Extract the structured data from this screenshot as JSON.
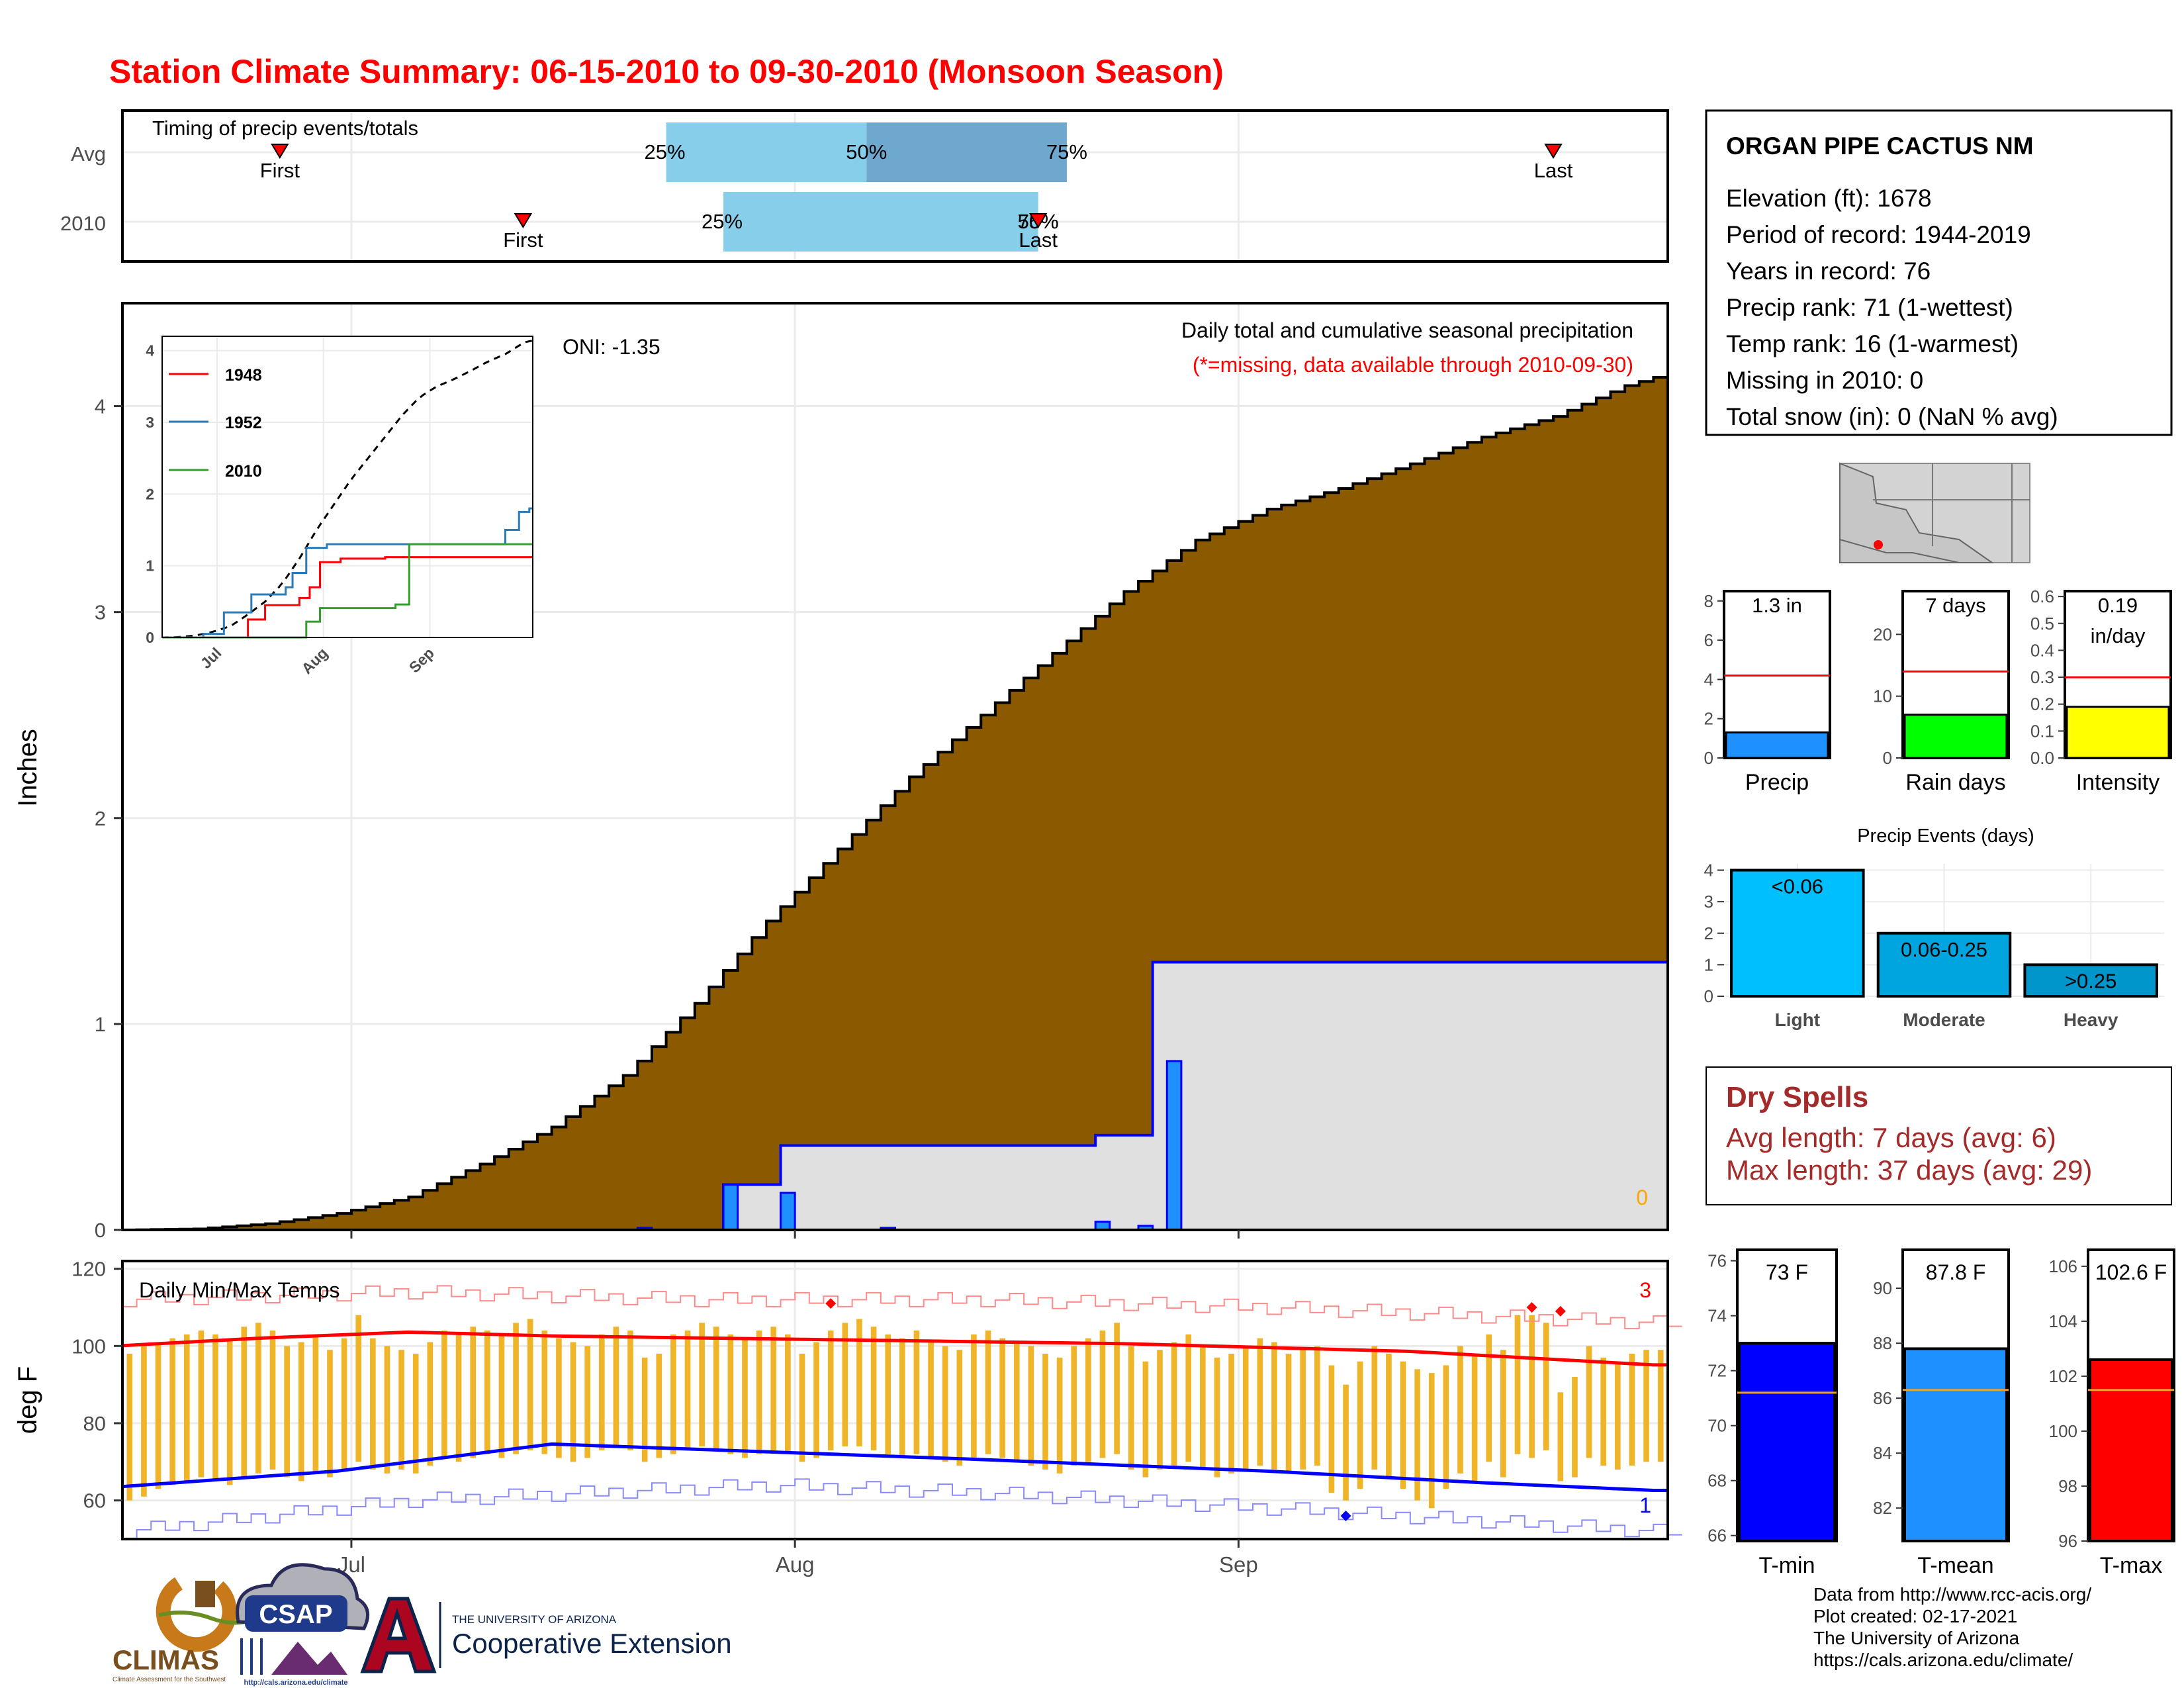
{
  "title": "Station Climate Summary: 06-15-2010 to 09-30-2010 (Monsoon Season)",
  "colors": {
    "title": "#ff0000",
    "accumulation_fill": "#8b5a00",
    "observed_fill": "#e0e0e0",
    "observed_line": "#0000ff",
    "daily_bar": "#1e90ff",
    "temp_bar": "#f0b429",
    "avg_max": "#ff0000",
    "avg_min": "#0000ff",
    "timing_light": "#87ceeb",
    "timing_dark": "#6fa8cf",
    "dry_spell": "#a52a2a"
  },
  "timing": {
    "label": "Timing of precip events/totals",
    "rows": [
      {
        "name": "Avg",
        "first_label": "First",
        "last_label": "Last",
        "p25_label": "25%",
        "p50_label": "50%",
        "p75_label": "75%",
        "first_day": 11,
        "last_day": 100,
        "p25_day": 38,
        "p50_day": 52,
        "p75_day": 66
      },
      {
        "name": "2010",
        "first_label": "First",
        "last_label": "Last",
        "p25_label": "25%",
        "p50_label": "50%",
        "p75_label": "75%",
        "first_day": 28,
        "last_day": 64,
        "p25_day": 42,
        "p50_day": 64,
        "p75_day": 64
      }
    ]
  },
  "station": {
    "name": "ORGAN PIPE CACTUS NM",
    "lines": [
      "Elevation (ft): 1678",
      "Period of record: 1944-2019",
      "Years in record: 76",
      "Precip rank: 71 (1-wettest)",
      "Temp rank: 16 (1-warmest)",
      "Missing in 2010: 0",
      "Total snow (in): 0 (NaN % avg)"
    ]
  },
  "precip_panel": {
    "title": "Daily total and cumulative seasonal precipitation",
    "note": "(*=missing, data available through 2010-09-30)",
    "oni": "ONI: -1.35",
    "missing_count": "0",
    "ylabel": "Inches"
  },
  "temp_panel": {
    "title": "Daily Min/Max Temps",
    "ylabel": "deg F",
    "record_high_count": "3",
    "record_low_count": "1"
  },
  "dry_spells": {
    "title": "Dry Spells",
    "avg_line": "Avg length: 7 days (avg: 6)",
    "max_line": "Max length: 37 days (avg: 29)"
  },
  "stat_bars": [
    {
      "name": "Precip",
      "value_text": "1.3 in",
      "value": 1.3,
      "avg": 4.2,
      "ymax": 8.5,
      "ticks": [
        0,
        2,
        4,
        6,
        8
      ],
      "color": "#1e90ff"
    },
    {
      "name": "Rain days",
      "value_text": "7 days",
      "value": 7,
      "avg": 14,
      "ymax": 27,
      "ticks": [
        0,
        10,
        20
      ],
      "color": "#00ff00"
    },
    {
      "name": "Intensity",
      "value_text": "0.19",
      "value_text2": "in/day",
      "value": 0.19,
      "avg": 0.3,
      "ymax": 0.62,
      "ticks": [
        0.0,
        0.1,
        0.2,
        0.3,
        0.4,
        0.5,
        0.6
      ],
      "color": "#ffff00"
    }
  ],
  "events": {
    "title": "Precip Events (days)",
    "categories": [
      "Light",
      "Moderate",
      "Heavy"
    ],
    "bar_labels": [
      "<0.06",
      "0.06-0.25",
      ">0.25"
    ],
    "values": [
      4,
      2,
      1
    ],
    "colors": [
      "#00bfff",
      "#00a5e0",
      "#0096cc"
    ],
    "ticks": [
      0,
      1,
      2,
      3,
      4
    ]
  },
  "temp_bars": [
    {
      "name": "T-min",
      "value_text": "73 F",
      "value": 73.0,
      "avg": 71.2,
      "ymin": 65.8,
      "ymax": 76.4,
      "ticks": [
        66,
        68,
        70,
        72,
        74,
        76
      ],
      "color": "#0000ff"
    },
    {
      "name": "T-mean",
      "value_text": "87.8 F",
      "value": 87.8,
      "avg": 86.3,
      "ymin": 80.8,
      "ymax": 91.4,
      "ticks": [
        82,
        84,
        86,
        88,
        90
      ],
      "color": "#1e90ff"
    },
    {
      "name": "T-max",
      "value_text": "102.6 F",
      "value": 102.6,
      "avg": 101.5,
      "ymin": 96.0,
      "ymax": 106.6,
      "ticks": [
        96,
        98,
        100,
        102,
        104,
        106
      ],
      "color": "#ff0000"
    }
  ],
  "credits": [
    "Data from http://www.rcc-acis.org/",
    "Plot created: 02-17-2021",
    "The University of Arizona",
    "https://cals.arizona.edu/climate/"
  ],
  "logos": {
    "climas": "CLIMAS",
    "climas_sub": "Climate Assessment for the Southwest",
    "csap": "CSAP",
    "csap_sub": "http://cals.arizona.edu/climate",
    "ua_small": "THE UNIVERSITY OF ARIZONA",
    "ua_big": "Cooperative Extension"
  },
  "chart_data": [
    {
      "type": "area",
      "title": "Daily total and cumulative seasonal precipitation",
      "ylabel": "Inches",
      "x_axis": {
        "start": "2010-06-15",
        "days": 108,
        "tick_labels": [
          "Jul",
          "Aug",
          "Sep"
        ],
        "tick_days": [
          16,
          47,
          78
        ]
      },
      "ylim": [
        0,
        4.5
      ],
      "yticks": [
        0,
        1,
        2,
        3,
        4
      ],
      "grid": true,
      "series": [
        {
          "name": "Average cumulative",
          "knots": [
            [
              0,
              0
            ],
            [
              5,
              0.005
            ],
            [
              10,
              0.03
            ],
            [
              15,
              0.08
            ],
            [
              20,
              0.16
            ],
            [
              25,
              0.32
            ],
            [
              30,
              0.5
            ],
            [
              35,
              0.75
            ],
            [
              40,
              1.1
            ],
            [
              45,
              1.5
            ],
            [
              50,
              1.85
            ],
            [
              55,
              2.2
            ],
            [
              60,
              2.5
            ],
            [
              65,
              2.8
            ],
            [
              70,
              3.1
            ],
            [
              75,
              3.35
            ],
            [
              80,
              3.5
            ],
            [
              85,
              3.6
            ],
            [
              90,
              3.72
            ],
            [
              95,
              3.85
            ],
            [
              100,
              3.95
            ],
            [
              105,
              4.1
            ],
            [
              107,
              4.14
            ]
          ]
        },
        {
          "name": "2010 cumulative",
          "steps": [
            [
              0,
              0
            ],
            [
              42,
              0.22
            ],
            [
              46,
              0.41
            ],
            [
              68,
              0.46
            ],
            [
              72,
              1.3
            ],
            [
              107,
              1.3
            ]
          ]
        },
        {
          "name": "2010 daily",
          "bars": [
            [
              36,
              0.01
            ],
            [
              42,
              0.22
            ],
            [
              46,
              0.18
            ],
            [
              53,
              0.01
            ],
            [
              68,
              0.04
            ],
            [
              71,
              0.02
            ],
            [
              73,
              0.82
            ]
          ]
        }
      ]
    },
    {
      "type": "line",
      "title": "Daily Min/Max Temps",
      "ylabel": "deg F",
      "x_axis": {
        "start": "2010-06-15",
        "days": 108,
        "tick_labels": [
          "Jul",
          "Aug",
          "Sep"
        ],
        "tick_days": [
          16,
          47,
          78
        ]
      },
      "ylim": [
        50,
        122
      ],
      "yticks": [
        60,
        80,
        100,
        120
      ],
      "grid": true,
      "series": [
        {
          "name": "Average max",
          "knots": [
            [
              0,
              100.5
            ],
            [
              10,
              102.5
            ],
            [
              20,
              104
            ],
            [
              30,
              103
            ],
            [
              50,
              102
            ],
            [
              70,
              101
            ],
            [
              90,
              99
            ],
            [
              107,
              95.5
            ]
          ]
        },
        {
          "name": "Average min",
          "knots": [
            [
              0,
              64
            ],
            [
              15,
              68
            ],
            [
              30,
              75
            ],
            [
              45,
              73
            ],
            [
              60,
              71
            ],
            [
              80,
              68
            ],
            [
              95,
              65
            ],
            [
              107,
              63
            ]
          ]
        },
        {
          "name": "Record high",
          "knots": [
            [
              0,
              112
            ],
            [
              20,
              114
            ],
            [
              40,
              112
            ],
            [
              60,
              112
            ],
            [
              80,
              110
            ],
            [
              107,
              106
            ]
          ]
        },
        {
          "name": "Record low",
          "knots": [
            [
              0,
              52
            ],
            [
              20,
              60
            ],
            [
              45,
              64
            ],
            [
              60,
              62
            ],
            [
              80,
              58
            ],
            [
              107,
              52
            ]
          ]
        },
        {
          "name": "Daily max",
          "values": [
            98,
            100,
            101,
            102,
            103,
            104,
            103,
            102,
            105,
            106,
            104,
            100,
            101,
            103,
            99,
            102,
            108,
            102,
            100,
            99,
            98,
            101,
            104,
            103,
            105,
            104,
            103,
            106,
            107,
            104,
            102,
            101,
            100,
            103,
            105,
            104,
            97,
            98,
            103,
            104,
            106,
            105,
            103,
            102,
            104,
            105,
            103,
            98,
            101,
            104,
            106,
            107,
            105,
            103,
            102,
            104,
            101,
            100,
            99,
            103,
            104,
            102,
            101,
            100,
            98,
            97,
            100,
            102,
            104,
            106,
            100,
            96,
            99,
            101,
            103,
            100,
            97,
            98,
            100,
            102,
            101,
            98,
            99,
            100,
            95,
            90,
            96,
            100,
            98,
            96,
            94,
            93,
            95,
            100,
            98,
            103,
            99,
            108,
            108,
            106,
            88,
            92,
            100,
            97,
            96,
            98,
            99,
            99
          ]
        },
        {
          "name": "Daily min",
          "values": [
            60,
            61,
            63,
            64,
            65,
            66,
            65,
            64,
            66,
            67,
            68,
            66,
            65,
            67,
            66,
            68,
            70,
            68,
            67,
            68,
            67,
            69,
            71,
            70,
            71,
            72,
            71,
            72,
            73,
            72,
            71,
            70,
            71,
            73,
            74,
            73,
            70,
            71,
            72,
            73,
            74,
            73,
            72,
            71,
            72,
            73,
            72,
            70,
            71,
            73,
            74,
            74,
            73,
            72,
            71,
            72,
            71,
            70,
            69,
            71,
            72,
            71,
            70,
            69,
            68,
            67,
            69,
            70,
            71,
            72,
            68,
            66,
            68,
            69,
            70,
            68,
            66,
            67,
            68,
            69,
            68,
            67,
            68,
            69,
            62,
            60,
            63,
            68,
            66,
            63,
            60,
            58,
            63,
            67,
            65,
            70,
            66,
            72,
            71,
            73,
            65,
            66,
            71,
            69,
            68,
            69,
            70,
            70
          ]
        },
        {
          "name": "Record highs set",
          "points": [
            [
              49,
              111
            ],
            [
              74,
              -1
            ],
            [
              98,
              110
            ],
            [
              100,
              109
            ]
          ]
        },
        {
          "name": "Record lows set",
          "points": [
            [
              85,
              56
            ]
          ]
        }
      ]
    },
    {
      "type": "bar",
      "title": "Precip Events (days)",
      "categories": [
        "Light",
        "Moderate",
        "Heavy"
      ],
      "values": [
        4,
        2,
        1
      ],
      "ylim": [
        0,
        4.2
      ]
    }
  ]
}
